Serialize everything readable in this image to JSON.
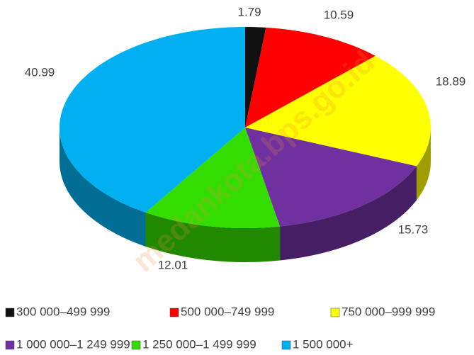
{
  "chart_data": {
    "type": "pie",
    "categories": [
      "300 000–499 999",
      "500 000–749 999",
      "750 000–999 999",
      "1 000 000–1 249 999",
      "1 250 000–1 499 999",
      "1 500 000+"
    ],
    "values": [
      1.79,
      10.59,
      18.89,
      15.73,
      12.01,
      40.99
    ],
    "colors": [
      "#111111",
      "#ff0000",
      "#ffff00",
      "#7030a0",
      "#33dd00",
      "#00b0f0"
    ],
    "watermark": "medankota.bps.go.id"
  }
}
